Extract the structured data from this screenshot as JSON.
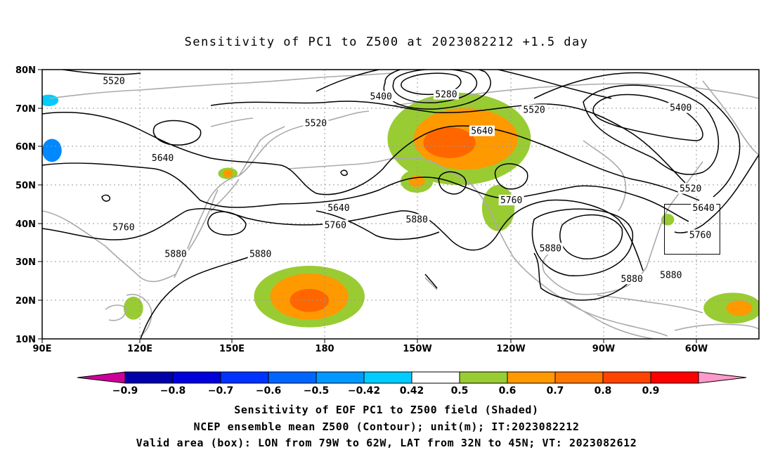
{
  "title": "Sensitivity of PC1 to Z500 at 2023082212 +1.5 day",
  "axes": {
    "lat_ticks": [
      "80N",
      "70N",
      "60N",
      "50N",
      "40N",
      "30N",
      "20N",
      "10N"
    ],
    "lon_ticks": [
      "90E",
      "120E",
      "150E",
      "180",
      "150W",
      "120W",
      "90W",
      "60W"
    ],
    "extent": {
      "lon_min": 90,
      "lon_max": 310,
      "lat_min": 10,
      "lat_max": 80
    },
    "grid": true
  },
  "contour_labels": [
    {
      "text": "5520",
      "lon": 112,
      "lat": 77
    },
    {
      "text": "5400",
      "lon": 194,
      "lat": 73
    },
    {
      "text": "5280",
      "lon": 214,
      "lat": 73.5
    },
    {
      "text": "5520",
      "lon": 241,
      "lat": 69.5
    },
    {
      "text": "5400",
      "lon": 286,
      "lat": 70
    },
    {
      "text": "5520",
      "lon": 174,
      "lat": 66
    },
    {
      "text": "5640",
      "lon": 225,
      "lat": 64
    },
    {
      "text": "5640",
      "lon": 127,
      "lat": 57
    },
    {
      "text": "5520",
      "lon": 289,
      "lat": 49
    },
    {
      "text": "5640",
      "lon": 293,
      "lat": 44
    },
    {
      "text": "5640",
      "lon": 181,
      "lat": 44
    },
    {
      "text": "5760",
      "lon": 234,
      "lat": 46
    },
    {
      "text": "5880",
      "lon": 205,
      "lat": 41
    },
    {
      "text": "5760",
      "lon": 115,
      "lat": 39
    },
    {
      "text": "5760",
      "lon": 180,
      "lat": 39.5
    },
    {
      "text": "5760",
      "lon": 292,
      "lat": 37
    },
    {
      "text": "5880",
      "lon": 131,
      "lat": 32
    },
    {
      "text": "5880",
      "lon": 157,
      "lat": 32
    },
    {
      "text": "5880",
      "lon": 246,
      "lat": 33.5
    },
    {
      "text": "5880",
      "lon": 271,
      "lat": 25.5
    },
    {
      "text": "5880",
      "lon": 283,
      "lat": 26.5
    }
  ],
  "shading_regions": [
    {
      "level": "0.42-0.5",
      "color": "#99cc33",
      "cx": 218,
      "cy": 62,
      "rx": 22,
      "ry": 12
    },
    {
      "level": "0.5-0.6",
      "color": "#ff9900",
      "cx": 220,
      "cy": 62,
      "rx": 16,
      "ry": 8
    },
    {
      "level": "0.6-0.7",
      "color": "#ff6600",
      "cx": 215,
      "cy": 61,
      "rx": 8,
      "ry": 4
    },
    {
      "level": "0.42-0.5",
      "color": "#99cc33",
      "cx": 172,
      "cy": 21,
      "rx": 17,
      "ry": 8
    },
    {
      "level": "0.5-0.6",
      "color": "#ff9900",
      "cx": 172,
      "cy": 21,
      "rx": 12,
      "ry": 6
    },
    {
      "level": "0.6-0.7",
      "color": "#ff6600",
      "cx": 172,
      "cy": 20,
      "rx": 6,
      "ry": 3
    },
    {
      "level": "0.42-0.5",
      "color": "#99cc33",
      "cx": 302,
      "cy": 18,
      "rx": 9,
      "ry": 4
    },
    {
      "level": "0.5-0.6",
      "color": "#ff9900",
      "cx": 304,
      "cy": 18,
      "rx": 4,
      "ry": 2
    },
    {
      "level": "0.42-0.5",
      "color": "#99cc33",
      "cx": 230,
      "cy": 44,
      "rx": 5,
      "ry": 6
    },
    {
      "level": "0.42-0.5",
      "color": "#99cc33",
      "cx": 205,
      "cy": 51,
      "rx": 5,
      "ry": 3
    },
    {
      "level": "0.5-0.6",
      "color": "#ff9900",
      "cx": 205,
      "cy": 51,
      "rx": 2.5,
      "ry": 1.5
    },
    {
      "level": "0.42-0.5",
      "color": "#99cc33",
      "cx": 118,
      "cy": 18,
      "rx": 3,
      "ry": 3
    },
    {
      "level": "0.42-0.5",
      "color": "#99cc33",
      "cx": 147,
      "cy": 53,
      "rx": 3,
      "ry": 1.5
    },
    {
      "level": "0.5-0.6",
      "color": "#ff9900",
      "cx": 147,
      "cy": 53,
      "rx": 1.5,
      "ry": 1
    },
    {
      "level": "-0.6--0.5",
      "color": "#0088ff",
      "cx": 93,
      "cy": 59,
      "rx": 3,
      "ry": 3
    },
    {
      "level": "-0.5--0.42",
      "color": "#00ccff",
      "cx": 92,
      "cy": 72,
      "rx": 3,
      "ry": 1.5
    },
    {
      "level": "0.42-0.5",
      "color": "#99cc33",
      "cx": 282,
      "cy": 41,
      "rx": 2,
      "ry": 1.5
    }
  ],
  "valid_box": {
    "lon_min": 281,
    "lon_max": 298,
    "lat_min": 32,
    "lat_max": 45
  },
  "colorbar": {
    "min_color": "#cc0099",
    "max_color": "#ff99cc",
    "colors": [
      "#0000aa",
      "#0000dd",
      "#0033ff",
      "#0066ff",
      "#0099ff",
      "#00ccff",
      "#ffffff",
      "#99cc33",
      "#ff9900",
      "#ff7700",
      "#ff4400",
      "#ff0000"
    ],
    "labels": [
      "-0.9",
      "-0.8",
      "-0.7",
      "-0.6",
      "-0.5",
      "-0.42",
      "0.42",
      "0.5",
      "0.6",
      "0.7",
      "0.8",
      "0.9"
    ]
  },
  "footer": [
    "Sensitivity of EOF PC1 to Z500 field (Shaded)",
    "NCEP ensemble mean Z500 (Contour); unit(m); IT:2023082212",
    "Valid area (box): LON from 79W to 62W, LAT from 32N to 45N; VT: 2023082612"
  ]
}
